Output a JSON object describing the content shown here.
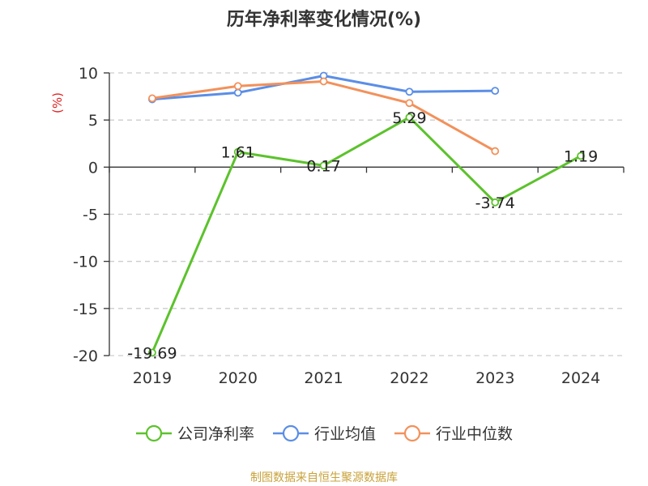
{
  "chart_data": {
    "type": "line",
    "title": "历年净利率变化情况(%)",
    "ylabel": "(%)",
    "categories": [
      "2019",
      "2020",
      "2021",
      "2022",
      "2023",
      "2024"
    ],
    "ylim": [
      -20,
      10
    ],
    "yticks": [
      10,
      5,
      0,
      -5,
      -10,
      -15,
      -20
    ],
    "grid": true,
    "legend_position": "bottom",
    "series": [
      {
        "name": "公司净利率",
        "color": "#5cc22c",
        "values": [
          -19.69,
          1.61,
          0.17,
          5.29,
          -3.74,
          1.19
        ],
        "labels": [
          "-19.69",
          "1.61",
          "0.17",
          "5.29",
          "-3.74",
          "1.19"
        ]
      },
      {
        "name": "行业均值",
        "color": "#5b8ee6",
        "values": [
          7.2,
          7.9,
          9.7,
          8.0,
          8.1,
          null
        ]
      },
      {
        "name": "行业中位数",
        "color": "#f2915b",
        "values": [
          7.3,
          8.6,
          9.1,
          6.8,
          1.7,
          null
        ]
      }
    ]
  },
  "source_text": "制图数据来自恒生聚源数据库"
}
